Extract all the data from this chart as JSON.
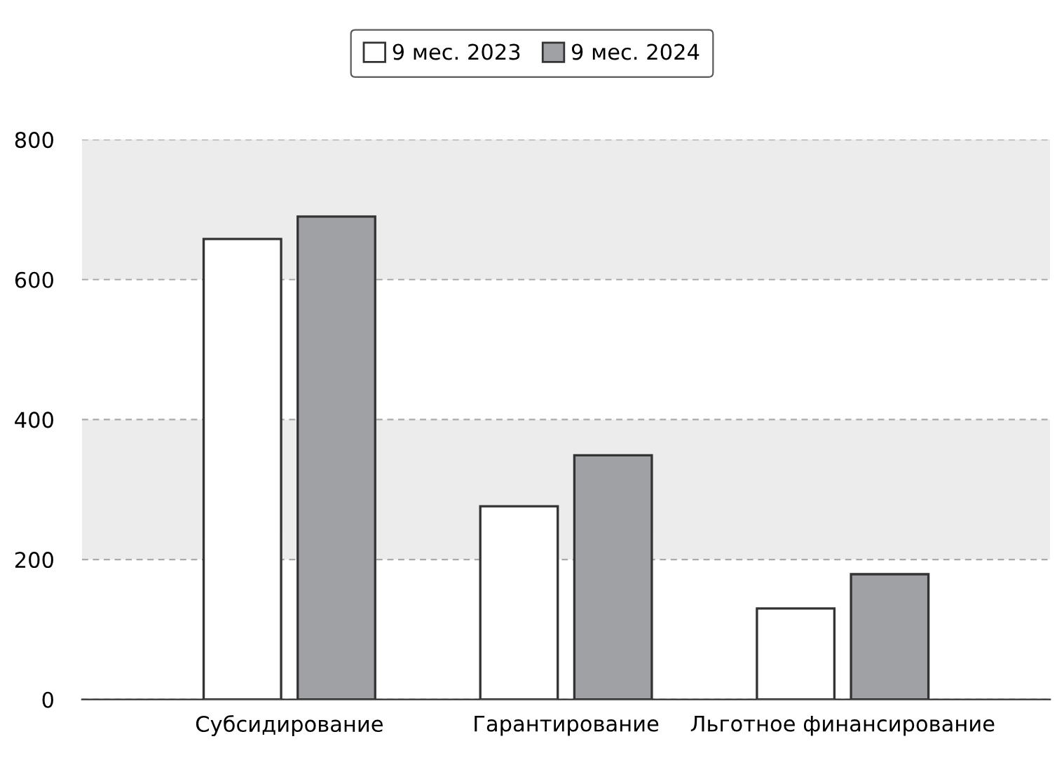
{
  "chart_data": {
    "type": "bar",
    "categories": [
      "Субсидирование",
      "Гарантирование",
      "Льготное финансирование"
    ],
    "series": [
      {
        "name": "9 мес. 2023",
        "color": "#ffffff",
        "values": [
          658,
          276,
          130
        ]
      },
      {
        "name": "9 мес. 2024",
        "color": "#a0a1a4",
        "values": [
          690,
          349,
          179
        ]
      }
    ],
    "ylim": [
      0,
      800
    ],
    "yticks": [
      0,
      200,
      400,
      600,
      800
    ],
    "grid": "y",
    "legend": "top",
    "bands": [
      {
        "axis": "y",
        "from": 200,
        "to": 400,
        "color": "#ececec"
      },
      {
        "axis": "y",
        "from": 600,
        "to": 800,
        "color": "#ececec"
      }
    ]
  }
}
